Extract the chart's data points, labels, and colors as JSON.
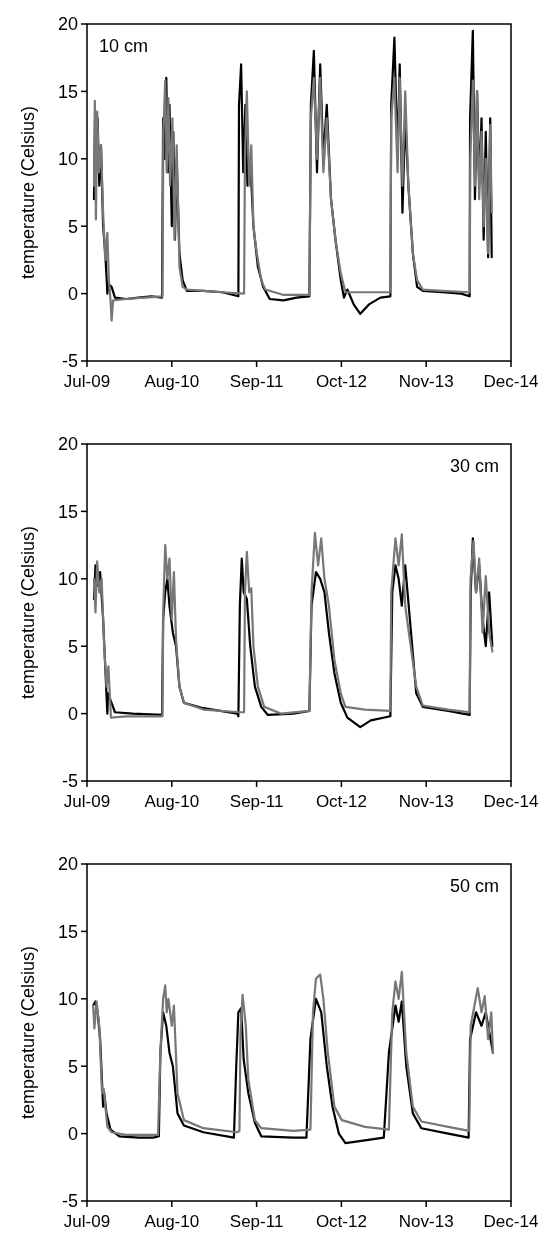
{
  "chart_data": [
    {
      "type": "line",
      "ylabel": "temperature (Celsius)",
      "annotations": [
        "10 cm"
      ],
      "xlim": [
        "2009-07-01",
        "2014-12-22"
      ],
      "xticks": [
        {
          "value": "2009-07-01",
          "label": "Jul-09"
        },
        {
          "value": "2010-08-05",
          "label": "Aug-10"
        },
        {
          "value": "2011-09-09",
          "label": "Sep-11"
        },
        {
          "value": "2012-10-13",
          "label": "Oct-12"
        },
        {
          "value": "2013-11-17",
          "label": "Nov-13"
        },
        {
          "value": "2014-12-22",
          "label": "Dec-14"
        }
      ],
      "ylim": [
        -5,
        20
      ],
      "yticks": [
        -5,
        0,
        5,
        10,
        15,
        20
      ],
      "grid": false,
      "marker": "none",
      "line_style": "solid",
      "series": [
        {
          "color": "#000000",
          "x": [
            "2009-08-03",
            "2009-08-08",
            "2009-08-13",
            "2009-08-20",
            "2009-08-28",
            "2009-09-05",
            "2009-09-15",
            "2009-09-25",
            "2009-10-02",
            "2009-10-05",
            "2009-10-10",
            "2009-10-25",
            "2009-11-10",
            "2010-01-01",
            "2010-03-01",
            "2010-05-01",
            "2010-06-20",
            "2010-06-25",
            "2010-07-02",
            "2010-07-10",
            "2010-07-18",
            "2010-07-25",
            "2010-08-05",
            "2010-08-12",
            "2010-08-20",
            "2010-08-28",
            "2010-09-10",
            "2010-09-25",
            "2010-10-15",
            "2011-01-01",
            "2011-04-01",
            "2011-06-15",
            "2011-06-18",
            "2011-06-28",
            "2011-07-08",
            "2011-07-18",
            "2011-07-28",
            "2011-08-10",
            "2011-08-25",
            "2011-09-15",
            "2011-10-10",
            "2011-11-10",
            "2012-01-15",
            "2012-03-15",
            "2012-05-15",
            "2012-05-22",
            "2012-06-05",
            "2012-06-20",
            "2012-07-05",
            "2012-07-20",
            "2012-08-05",
            "2012-08-25",
            "2012-09-15",
            "2012-10-10",
            "2012-10-25",
            "2012-11-10",
            "2012-12-10",
            "2013-01-10",
            "2013-02-20",
            "2013-04-15",
            "2013-06-01",
            "2013-06-05",
            "2013-06-20",
            "2013-07-05",
            "2013-07-15",
            "2013-07-28",
            "2013-08-10",
            "2013-08-25",
            "2013-09-15",
            "2013-10-05",
            "2013-11-01",
            "2014-02-01",
            "2014-05-01",
            "2014-06-10",
            "2014-06-12",
            "2014-06-25",
            "2014-07-05",
            "2014-07-15",
            "2014-07-25",
            "2014-08-05",
            "2014-08-15",
            "2014-08-25",
            "2014-09-05",
            "2014-09-15",
            "2014-09-22"
          ],
          "values": [
            7,
            13,
            9,
            13,
            8,
            11,
            5,
            3,
            1,
            0,
            0.7,
            0.5,
            -0.3,
            -0.4,
            -0.3,
            -0.2,
            -0.3,
            13,
            10,
            16,
            9,
            14,
            5,
            12,
            4,
            10,
            3,
            1,
            0.2,
            0.2,
            0.1,
            -0.2,
            14,
            17,
            9,
            14,
            8,
            10,
            5,
            2,
            0.5,
            -0.4,
            -0.5,
            -0.3,
            -0.2,
            14,
            18,
            9,
            17,
            10,
            14,
            7,
            4,
            1,
            -0.3,
            0.3,
            -0.8,
            -1.5,
            -0.8,
            -0.3,
            -0.2,
            14,
            19,
            10,
            17,
            6,
            13,
            8,
            3,
            0.5,
            0.2,
            0.1,
            0,
            -0.2,
            13,
            19.5,
            7,
            15,
            8,
            13,
            4,
            12,
            2.7,
            13,
            2.7
          ]
        },
        {
          "color": "#777777",
          "x": [
            "2009-08-03",
            "2009-08-07",
            "2009-08-12",
            "2009-08-18",
            "2009-08-26",
            "2009-09-05",
            "2009-09-15",
            "2009-09-25",
            "2009-10-05",
            "2009-10-12",
            "2009-10-20",
            "2009-10-25",
            "2009-11-01",
            "2010-01-01",
            "2010-04-01",
            "2010-06-22",
            "2010-06-26",
            "2010-07-05",
            "2010-07-12",
            "2010-07-20",
            "2010-07-28",
            "2010-08-08",
            "2010-08-18",
            "2010-08-28",
            "2010-09-10",
            "2010-09-25",
            "2010-10-15",
            "2011-01-01",
            "2011-04-01",
            "2011-07-12",
            "2011-07-16",
            "2011-07-25",
            "2011-08-05",
            "2011-08-15",
            "2011-08-25",
            "2011-09-10",
            "2011-10-01",
            "2011-10-20",
            "2012-01-15",
            "2012-05-15",
            "2012-05-22",
            "2012-06-05",
            "2012-06-20",
            "2012-07-05",
            "2012-07-20",
            "2012-08-05",
            "2012-08-25",
            "2012-09-15",
            "2012-10-10",
            "2012-11-01",
            "2013-02-01",
            "2013-06-01",
            "2013-06-05",
            "2013-06-20",
            "2013-07-05",
            "2013-07-15",
            "2013-07-28",
            "2013-08-10",
            "2013-08-25",
            "2013-09-15",
            "2013-10-05",
            "2013-11-01",
            "2014-02-01",
            "2014-06-10",
            "2014-06-13",
            "2014-06-25",
            "2014-07-05",
            "2014-07-15",
            "2014-07-25",
            "2014-08-05",
            "2014-08-15",
            "2014-08-25",
            "2014-09-05",
            "2014-09-15",
            "2014-09-22"
          ],
          "values": [
            8,
            14.3,
            5.5,
            13.5,
            9,
            11,
            6,
            2.5,
            4.5,
            1,
            -0.5,
            -2,
            -0.5,
            -0.4,
            -0.3,
            -0.2,
            12,
            15.8,
            9,
            14.5,
            8,
            13,
            4,
            11,
            2,
            0.5,
            0.3,
            0.2,
            0.1,
            0,
            10,
            15,
            8,
            11,
            5,
            3,
            1,
            0.3,
            -0.1,
            -0.1,
            13,
            16,
            10,
            16,
            9,
            13,
            7,
            4,
            1.5,
            0.1,
            0.1,
            0.1,
            13,
            16,
            9,
            16,
            8,
            15,
            8,
            3,
            1,
            0.3,
            0.2,
            0.1,
            10,
            15.8,
            8,
            15,
            7,
            12,
            5,
            10,
            3,
            12.5,
            6
          ]
        }
      ]
    },
    {
      "type": "line",
      "ylabel": "temperature (Celsius)",
      "annotations": [
        "30 cm"
      ],
      "xlim": [
        "2009-07-01",
        "2014-12-22"
      ],
      "xticks": [
        {
          "value": "2009-07-01",
          "label": "Jul-09"
        },
        {
          "value": "2010-08-05",
          "label": "Aug-10"
        },
        {
          "value": "2011-09-09",
          "label": "Sep-11"
        },
        {
          "value": "2012-10-13",
          "label": "Oct-12"
        },
        {
          "value": "2013-11-17",
          "label": "Nov-13"
        },
        {
          "value": "2014-12-22",
          "label": "Dec-14"
        }
      ],
      "ylim": [
        -5,
        20
      ],
      "yticks": [
        -5,
        0,
        5,
        10,
        15,
        20
      ],
      "grid": false,
      "marker": "none",
      "line_style": "solid",
      "series": [
        {
          "color": "#000000",
          "x": [
            "2009-08-03",
            "2009-08-10",
            "2009-08-20",
            "2009-09-01",
            "2009-09-15",
            "2009-09-25",
            "2009-10-05",
            "2009-10-08",
            "2009-10-20",
            "2009-11-10",
            "2010-02-01",
            "2010-06-20",
            "2010-06-25",
            "2010-07-05",
            "2010-07-15",
            "2010-07-25",
            "2010-08-10",
            "2010-08-25",
            "2010-09-10",
            "2010-10-01",
            "2011-01-01",
            "2011-06-10",
            "2011-06-15",
            "2011-06-22",
            "2011-07-01",
            "2011-07-10",
            "2011-07-25",
            "2011-08-10",
            "2011-09-01",
            "2011-10-01",
            "2011-11-01",
            "2012-03-01",
            "2012-05-15",
            "2012-05-25",
            "2012-06-15",
            "2012-07-05",
            "2012-07-25",
            "2012-08-15",
            "2012-09-10",
            "2012-10-10",
            "2012-11-10",
            "2013-01-10",
            "2013-03-01",
            "2013-06-01",
            "2013-06-10",
            "2013-06-25",
            "2013-07-10",
            "2013-07-25",
            "2013-08-10",
            "2013-09-01",
            "2013-10-01",
            "2013-11-01",
            "2014-03-01",
            "2014-06-10",
            "2014-06-15",
            "2014-06-25",
            "2014-07-10",
            "2014-07-25",
            "2014-08-10",
            "2014-08-25",
            "2014-09-10",
            "2014-09-25"
          ],
          "values": [
            8.5,
            11,
            9.5,
            10.5,
            7,
            3.5,
            0,
            1.5,
            1,
            0.1,
            0,
            -0.1,
            7,
            9,
            10,
            8,
            6,
            5,
            2,
            0.8,
            0.4,
            0,
            -0.2,
            8,
            11.5,
            9,
            8.5,
            5,
            2,
            0.5,
            -0.1,
            0,
            0.2,
            8,
            10.5,
            10,
            9,
            6,
            3,
            0.8,
            -0.3,
            -1,
            -0.5,
            -0.2,
            9,
            11,
            10,
            8,
            11,
            7,
            1.5,
            0.5,
            0.2,
            -0.1,
            9,
            13,
            9,
            11,
            7,
            5,
            9,
            5
          ]
        },
        {
          "color": "#777777",
          "x": [
            "2009-08-03",
            "2009-08-10",
            "2009-08-18",
            "2009-08-28",
            "2009-09-08",
            "2009-09-20",
            "2009-10-01",
            "2009-10-10",
            "2009-10-22",
            "2010-01-01",
            "2010-06-22",
            "2010-06-26",
            "2010-07-05",
            "2010-07-15",
            "2010-07-25",
            "2010-08-05",
            "2010-08-15",
            "2010-08-25",
            "2010-09-10",
            "2010-10-01",
            "2011-01-01",
            "2011-06-20",
            "2011-07-12",
            "2011-07-16",
            "2011-07-25",
            "2011-08-05",
            "2011-08-15",
            "2011-08-25",
            "2011-09-15",
            "2011-10-15",
            "2012-01-01",
            "2012-05-15",
            "2012-05-25",
            "2012-06-10",
            "2012-06-25",
            "2012-07-10",
            "2012-07-25",
            "2012-08-15",
            "2012-09-10",
            "2012-10-10",
            "2012-11-01",
            "2013-02-01",
            "2013-06-01",
            "2013-06-05",
            "2013-06-25",
            "2013-07-10",
            "2013-07-25",
            "2013-08-10",
            "2013-09-05",
            "2013-10-01",
            "2013-11-01",
            "2014-03-01",
            "2014-06-10",
            "2014-06-14",
            "2014-06-28",
            "2014-07-10",
            "2014-07-25",
            "2014-08-10",
            "2014-08-25",
            "2014-09-10",
            "2014-09-25"
          ],
          "values": [
            10,
            7.5,
            11.3,
            9,
            10,
            5,
            2,
            3.5,
            -0.3,
            -0.2,
            -0.2,
            8,
            12.5,
            10,
            11.5,
            7,
            10.5,
            5.5,
            2,
            0.8,
            0.3,
            0.1,
            0.1,
            9,
            12,
            9,
            9.3,
            5,
            2,
            0.5,
            0,
            0.2,
            9,
            13.4,
            11,
            13,
            10,
            8,
            4,
            1.5,
            0.5,
            0.3,
            0.2,
            9,
            13,
            11,
            13.3,
            8,
            5,
            2,
            0.6,
            0.3,
            0.1,
            10,
            12.8,
            9,
            11.5,
            6,
            10.2,
            6,
            4.6
          ]
        }
      ]
    },
    {
      "type": "line",
      "ylabel": "temperature (Celsius)",
      "annotations": [
        "50 cm"
      ],
      "xlim": [
        "2009-07-01",
        "2014-12-22"
      ],
      "xticks": [
        {
          "value": "2009-07-01",
          "label": "Jul-09"
        },
        {
          "value": "2010-08-05",
          "label": "Aug-10"
        },
        {
          "value": "2011-09-09",
          "label": "Sep-11"
        },
        {
          "value": "2012-10-13",
          "label": "Oct-12"
        },
        {
          "value": "2013-11-17",
          "label": "Nov-13"
        },
        {
          "value": "2014-12-22",
          "label": "Dec-14"
        }
      ],
      "ylim": [
        -5,
        20
      ],
      "yticks": [
        -5,
        0,
        5,
        10,
        15,
        20
      ],
      "grid": false,
      "marker": "none",
      "line_style": "solid",
      "series": [
        {
          "color": "#000000",
          "x": [
            "2009-07-30",
            "2009-08-10",
            "2009-08-20",
            "2009-09-01",
            "2009-09-15",
            "2009-09-20",
            "2009-10-01",
            "2009-10-20",
            "2009-12-01",
            "2010-03-01",
            "2010-05-10",
            "2010-06-05",
            "2010-06-12",
            "2010-06-25",
            "2010-07-10",
            "2010-07-25",
            "2010-08-10",
            "2010-09-01",
            "2010-10-01",
            "2011-01-01",
            "2011-05-25",
            "2011-06-05",
            "2011-06-15",
            "2011-06-28",
            "2011-07-10",
            "2011-08-01",
            "2011-09-01",
            "2011-10-01",
            "2012-03-01",
            "2012-05-01",
            "2012-05-20",
            "2012-06-15",
            "2012-07-10",
            "2012-08-05",
            "2012-09-01",
            "2012-10-01",
            "2012-11-01",
            "2013-02-01",
            "2013-05-01",
            "2013-05-25",
            "2013-06-25",
            "2013-07-10",
            "2013-07-25",
            "2013-08-15",
            "2013-09-15",
            "2013-10-25",
            "2014-03-01",
            "2014-06-05",
            "2014-06-12",
            "2014-07-10",
            "2014-08-05",
            "2014-08-25",
            "2014-09-28"
          ],
          "values": [
            9.5,
            9.8,
            9,
            7,
            2,
            3,
            1.5,
            0.3,
            -0.2,
            -0.3,
            -0.3,
            -0.2,
            6,
            9,
            8,
            6,
            5,
            1.5,
            0.6,
            0.1,
            -0.3,
            5,
            9,
            9.3,
            5.5,
            3,
            0.8,
            -0.2,
            -0.3,
            -0.3,
            7,
            10,
            9,
            5,
            2,
            0,
            -0.7,
            -0.5,
            -0.3,
            6,
            9.5,
            8.3,
            9.8,
            5,
            1.5,
            0.4,
            0,
            -0.3,
            7,
            9,
            8,
            9,
            6
          ]
        },
        {
          "color": "#777777",
          "x": [
            "2009-07-30",
            "2009-08-05",
            "2009-08-15",
            "2009-08-28",
            "2009-09-10",
            "2009-09-18",
            "2009-10-05",
            "2009-10-25",
            "2010-01-01",
            "2010-06-01",
            "2010-06-12",
            "2010-06-25",
            "2010-07-05",
            "2010-07-12",
            "2010-07-20",
            "2010-08-05",
            "2010-08-15",
            "2010-09-01",
            "2010-10-01",
            "2011-01-01",
            "2011-06-10",
            "2011-06-20",
            "2011-06-25",
            "2011-07-05",
            "2011-07-20",
            "2011-08-01",
            "2011-09-01",
            "2011-10-01",
            "2012-03-01",
            "2012-05-20",
            "2012-06-01",
            "2012-06-15",
            "2012-07-05",
            "2012-07-20",
            "2012-08-10",
            "2012-09-10",
            "2012-10-15",
            "2013-02-01",
            "2013-05-25",
            "2013-06-10",
            "2013-06-25",
            "2013-07-10",
            "2013-07-25",
            "2013-08-15",
            "2013-09-15",
            "2013-10-25",
            "2014-03-01",
            "2014-06-08",
            "2014-06-15",
            "2014-07-18",
            "2014-08-05",
            "2014-08-20",
            "2014-09-05",
            "2014-09-20",
            "2014-09-28"
          ],
          "values": [
            9.5,
            7.8,
            9.8,
            8,
            3,
            3.3,
            0.5,
            0.1,
            -0.1,
            -0.1,
            6,
            10,
            11,
            9,
            10,
            8,
            9.5,
            3,
            1,
            0.4,
            0.1,
            0.2,
            7.5,
            10.3,
            8,
            4,
            1,
            0.4,
            0.2,
            0.3,
            9,
            11.5,
            11.8,
            10,
            6,
            2,
            1,
            0.5,
            0.3,
            9,
            11.3,
            10,
            12,
            6,
            2,
            0.9,
            0.5,
            0.2,
            8,
            10.8,
            9,
            10.2,
            7,
            9,
            6
          ]
        }
      ]
    }
  ]
}
